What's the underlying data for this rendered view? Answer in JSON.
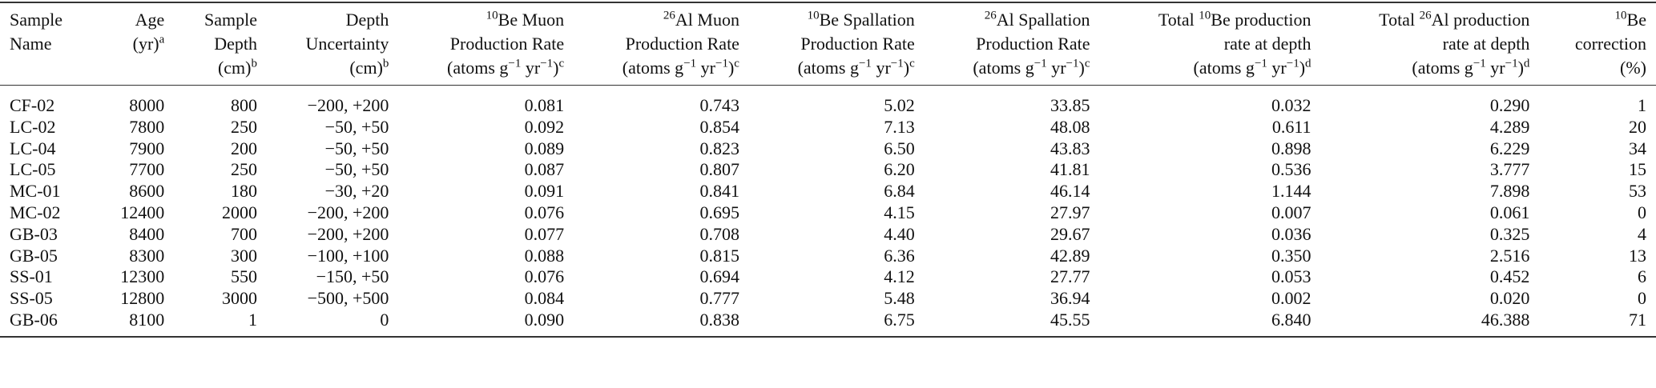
{
  "table": {
    "headers": [
      {
        "key": "name",
        "lines": [
          "Sample",
          "Name"
        ]
      },
      {
        "key": "age",
        "lines": [
          "Age",
          "(yr)"
        ],
        "sup_end": "a"
      },
      {
        "key": "depth",
        "lines": [
          "Sample",
          "Depth",
          "(cm)"
        ],
        "sup_end": "b"
      },
      {
        "key": "unc",
        "lines": [
          "Depth",
          "Uncertainty",
          "(cm)"
        ],
        "sup_end": "b"
      },
      {
        "key": "be_muon",
        "lines": [
          "Be Muon",
          "Production Rate",
          "(atoms g−1 yr−1)"
        ],
        "sup_iso": "10",
        "sup_end": "c"
      },
      {
        "key": "al_muon",
        "lines": [
          "Al Muon",
          "Production Rate",
          "(atoms g−1 yr−1)"
        ],
        "sup_iso": "26",
        "sup_end": "c"
      },
      {
        "key": "be_spall",
        "lines": [
          "Be Spallation",
          "Production Rate",
          "(atoms g−1 yr−1)"
        ],
        "sup_iso": "10",
        "sup_end": "c"
      },
      {
        "key": "al_spall",
        "lines": [
          "Al Spallation",
          "Production Rate",
          "(atoms g−1 yr−1)"
        ],
        "sup_iso": "26",
        "sup_end": "c"
      },
      {
        "key": "be_total",
        "lines": [
          "Total Be production",
          "rate at depth",
          "(atoms g−1 yr−1)"
        ],
        "sup_iso": "10",
        "sup_end": "d"
      },
      {
        "key": "al_total",
        "lines": [
          "Total Al production",
          "rate at depth",
          "(atoms g−1 yr−1)"
        ],
        "sup_iso": "26",
        "sup_end": "d"
      },
      {
        "key": "corr",
        "lines": [
          "Be",
          "correction",
          "(%)"
        ],
        "sup_iso": "10"
      }
    ],
    "rows": [
      [
        "CF-02",
        "8000",
        "800",
        "−200, +200",
        "0.081",
        "0.743",
        "5.02",
        "33.85",
        "0.032",
        "0.290",
        "1"
      ],
      [
        "LC-02",
        "7800",
        "250",
        "−50, +50",
        "0.092",
        "0.854",
        "7.13",
        "48.08",
        "0.611",
        "4.289",
        "20"
      ],
      [
        "LC-04",
        "7900",
        "200",
        "−50, +50",
        "0.089",
        "0.823",
        "6.50",
        "43.83",
        "0.898",
        "6.229",
        "34"
      ],
      [
        "LC-05",
        "7700",
        "250",
        "−50, +50",
        "0.087",
        "0.807",
        "6.20",
        "41.81",
        "0.536",
        "3.777",
        "15"
      ],
      [
        "MC-01",
        "8600",
        "180",
        "−30, +20",
        "0.091",
        "0.841",
        "6.84",
        "46.14",
        "1.144",
        "7.898",
        "53"
      ],
      [
        "MC-02",
        "12400",
        "2000",
        "−200, +200",
        "0.076",
        "0.695",
        "4.15",
        "27.97",
        "0.007",
        "0.061",
        "0"
      ],
      [
        "GB-03",
        "8400",
        "700",
        "−200, +200",
        "0.077",
        "0.708",
        "4.40",
        "29.67",
        "0.036",
        "0.325",
        "4"
      ],
      [
        "GB-05",
        "8300",
        "300",
        "−100, +100",
        "0.088",
        "0.815",
        "6.36",
        "42.89",
        "0.350",
        "2.516",
        "13"
      ],
      [
        "SS-01",
        "12300",
        "550",
        "−150, +50",
        "0.076",
        "0.694",
        "4.12",
        "27.77",
        "0.053",
        "0.452",
        "6"
      ],
      [
        "SS-05",
        "12800",
        "3000",
        "−500, +500",
        "0.084",
        "0.777",
        "5.48",
        "36.94",
        "0.002",
        "0.020",
        "0"
      ],
      [
        "GB-06",
        "8100",
        "1",
        "0",
        "0.090",
        "0.838",
        "6.75",
        "45.55",
        "6.840",
        "46.388",
        "71"
      ]
    ]
  }
}
